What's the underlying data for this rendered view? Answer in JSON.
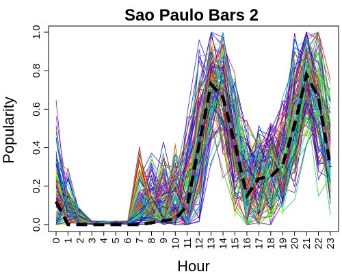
{
  "chart_data": {
    "type": "line",
    "title": "Sao Paulo Bars 2",
    "xlabel": "Hour",
    "ylabel": "Popularity",
    "xlim": [
      0,
      23
    ],
    "ylim": [
      0,
      1
    ],
    "x_ticks": [
      "0",
      "1",
      "2",
      "3",
      "4",
      "5",
      "6",
      "7",
      "8",
      "9",
      "10",
      "11",
      "12",
      "13",
      "14",
      "15",
      "16",
      "17",
      "18",
      "19",
      "20",
      "21",
      "22",
      "23"
    ],
    "y_ticks": [
      "0.0",
      "0.2",
      "0.4",
      "0.6",
      "0.8",
      "1.0"
    ],
    "grid": false,
    "legend": "none",
    "background_series_count": 120,
    "background_series_palette": "rainbow",
    "mean_series": {
      "style": "dashed",
      "color": "#000000",
      "values": [
        0.12,
        0.0,
        0.0,
        0.0,
        0.0,
        0.0,
        0.0,
        0.0,
        0.01,
        0.02,
        0.03,
        0.1,
        0.42,
        0.73,
        0.66,
        0.42,
        0.15,
        0.24,
        0.25,
        0.31,
        0.52,
        0.78,
        0.66,
        0.3
      ]
    }
  }
}
